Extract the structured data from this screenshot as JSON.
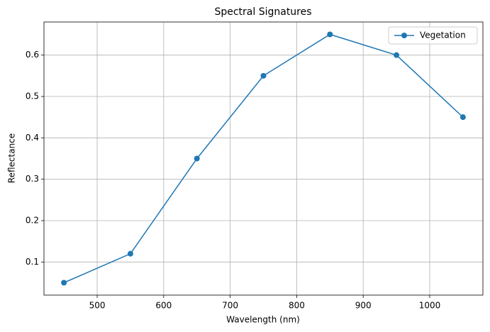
{
  "chart_data": {
    "type": "line",
    "title": "Spectral Signatures",
    "x_label": "Wavelength (nm)",
    "y_label": "Reflectance",
    "x": [
      450,
      550,
      650,
      750,
      850,
      950,
      1050
    ],
    "series": [
      {
        "name": "Vegetation",
        "color": "#1f77b4",
        "values": [
          0.05,
          0.12,
          0.35,
          0.55,
          0.65,
          0.6,
          0.45
        ]
      }
    ],
    "xlim": [
      420,
      1080
    ],
    "xticks": [
      500,
      600,
      700,
      800,
      900,
      1000
    ],
    "ylim": [
      0.02,
      0.68
    ],
    "yticks": [
      0.1,
      0.2,
      0.3,
      0.4,
      0.5,
      0.6
    ],
    "grid": true,
    "legend": "upper right"
  }
}
